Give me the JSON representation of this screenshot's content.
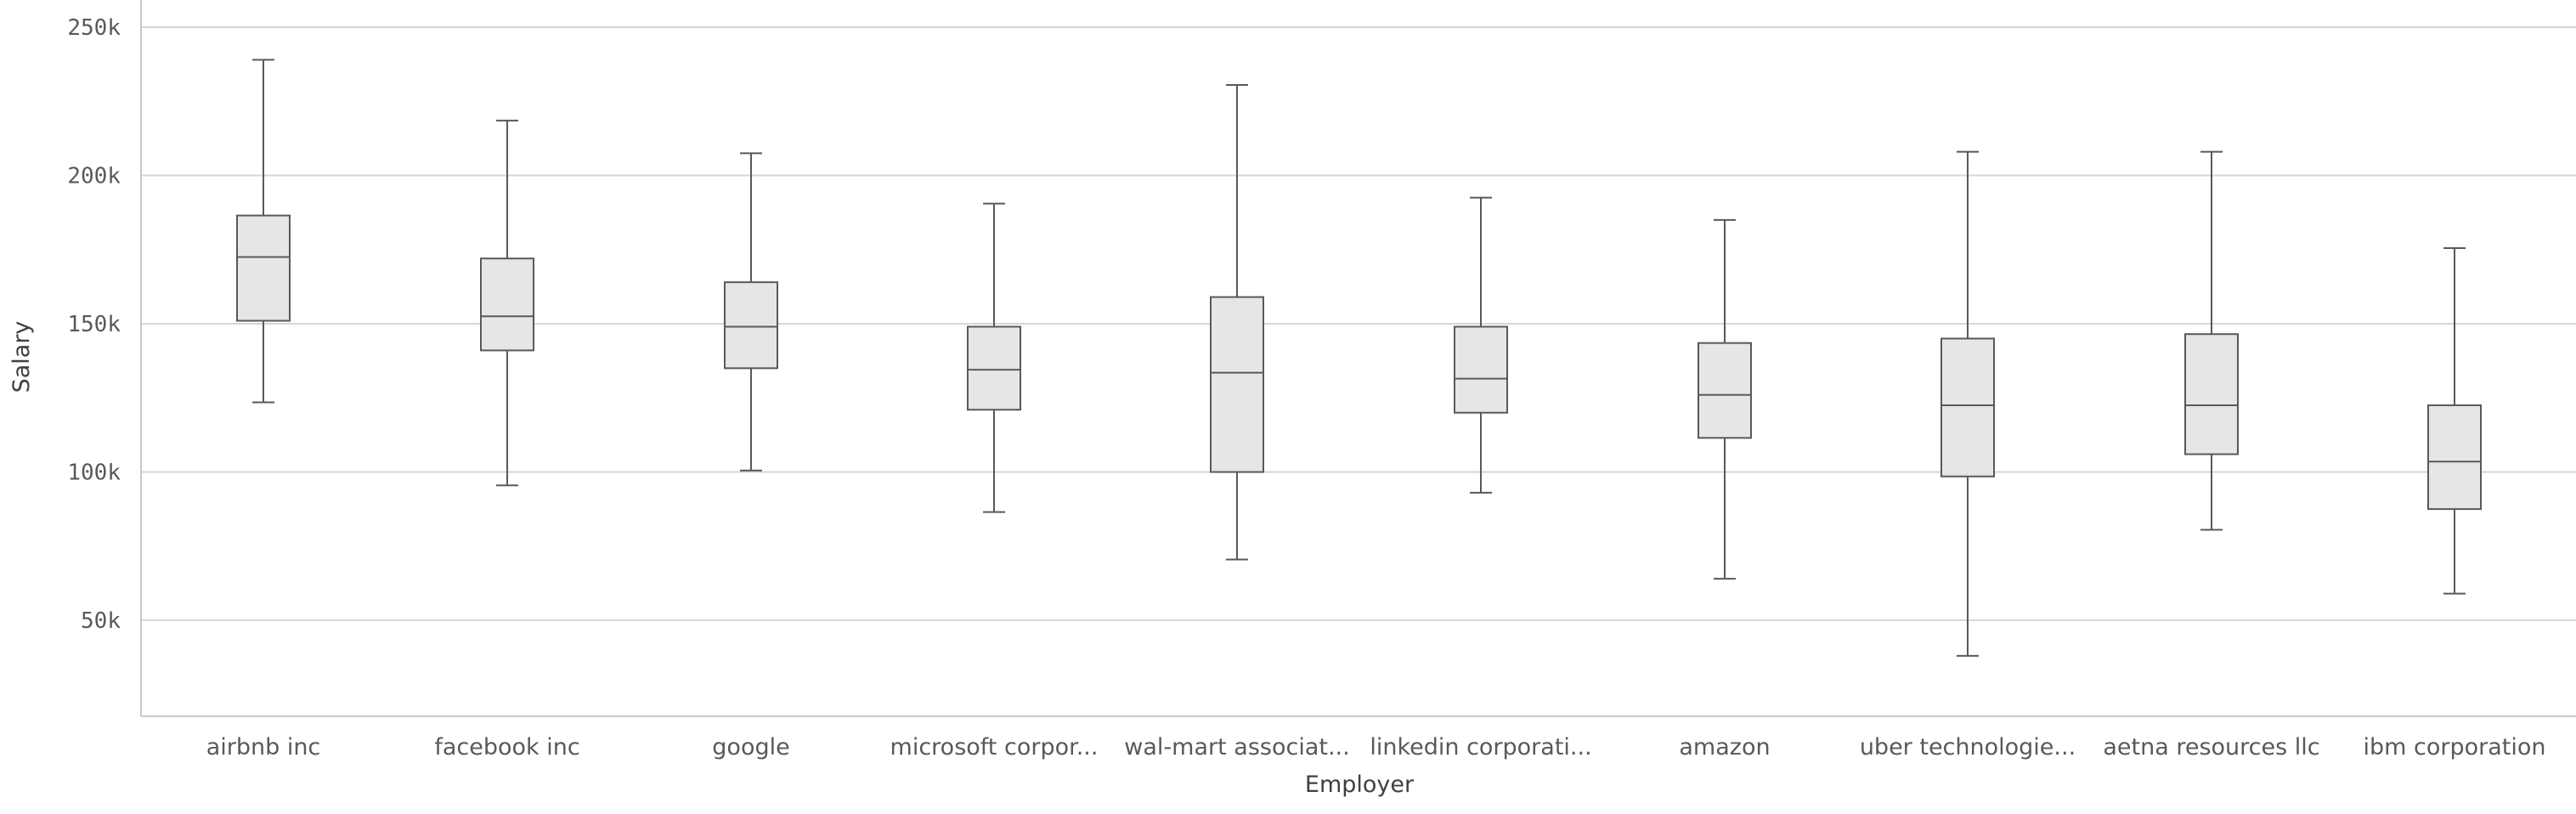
{
  "chart_data": {
    "type": "boxplot",
    "xlabel": "Employer",
    "ylabel": "Salary",
    "ylim": [
      18000,
      260000
    ],
    "yticks": [
      {
        "value": 50000,
        "label": "50k"
      },
      {
        "value": 100000,
        "label": "100k"
      },
      {
        "value": 150000,
        "label": "150k"
      },
      {
        "value": 200000,
        "label": "200k"
      },
      {
        "value": 250000,
        "label": "250k"
      }
    ],
    "grid": true,
    "box_fill": "#e6e6e6",
    "box_stroke": "#595959",
    "grid_color": "#d6d6d6",
    "categories": [
      "airbnb inc",
      "facebook inc",
      "google",
      "microsoft corpor...",
      "wal-mart associat...",
      "linkedin corporati...",
      "amazon",
      "uber technologie...",
      "aetna resources llc",
      "ibm corporation"
    ],
    "boxes": [
      {
        "min": 123500,
        "q1": 151000,
        "median": 172500,
        "q3": 186500,
        "max": 239000
      },
      {
        "min": 95500,
        "q1": 141000,
        "median": 152500,
        "q3": 172000,
        "max": 218500
      },
      {
        "min": 100500,
        "q1": 135000,
        "median": 149000,
        "q3": 164000,
        "max": 207500
      },
      {
        "min": 86500,
        "q1": 121000,
        "median": 134500,
        "q3": 149000,
        "max": 190500
      },
      {
        "min": 70500,
        "q1": 100000,
        "median": 133500,
        "q3": 159000,
        "max": 230500
      },
      {
        "min": 93000,
        "q1": 120000,
        "median": 131500,
        "q3": 149000,
        "max": 192500
      },
      {
        "min": 64000,
        "q1": 111500,
        "median": 126000,
        "q3": 143500,
        "max": 185000
      },
      {
        "min": 38000,
        "q1": 98500,
        "median": 122500,
        "q3": 145000,
        "max": 208000
      },
      {
        "min": 80500,
        "q1": 106000,
        "median": 122500,
        "q3": 146500,
        "max": 208000
      },
      {
        "min": 59000,
        "q1": 87500,
        "median": 103500,
        "q3": 122500,
        "max": 175500
      }
    ]
  }
}
